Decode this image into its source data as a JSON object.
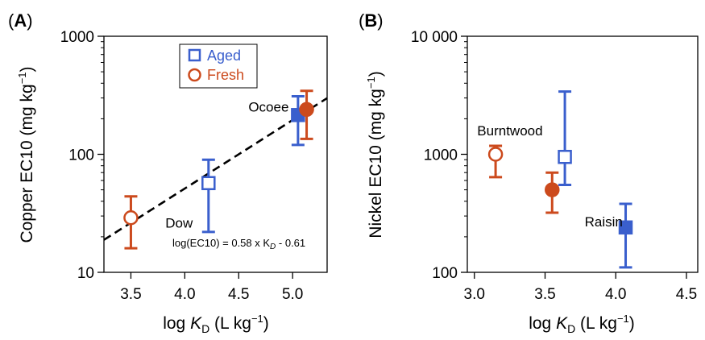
{
  "chart_data": [
    {
      "panel": "(A)",
      "panel_letter": "A",
      "type": "scatter",
      "ylabel": "Copper EC10 (mg kg⁻¹)",
      "xlabel": "log K_D (L kg⁻¹)",
      "x_scale": "linear",
      "y_scale": "log",
      "xlim": [
        3.25,
        5.32
      ],
      "ylim": [
        10,
        1000
      ],
      "x_ticks": [
        3.5,
        4.0,
        4.5,
        5.0
      ],
      "x_tick_labels": [
        "3.5",
        "4.0",
        "4.5",
        "5.0"
      ],
      "y_ticks": [
        10,
        100,
        1000
      ],
      "y_tick_labels": [
        "10",
        "100",
        "1000"
      ],
      "grid": false,
      "legend": {
        "placement": "top-center",
        "entries": [
          {
            "label": "Aged",
            "marker": "open-square",
            "color": "#3a5fcd"
          },
          {
            "label": "Fresh",
            "marker": "open-circle",
            "color": "#cc4a1d"
          }
        ]
      },
      "series": [
        {
          "name": "Aged",
          "color": "#3a5fcd",
          "points": [
            {
              "x": 4.22,
              "y": 57,
              "y_low": 22,
              "y_high": 90,
              "filled": false
            },
            {
              "x": 5.05,
              "y": 215,
              "y_low": 120,
              "y_high": 310,
              "filled": true
            }
          ]
        },
        {
          "name": "Fresh",
          "color": "#cc4a1d",
          "points": [
            {
              "x": 3.5,
              "y": 29,
              "y_low": 16,
              "y_high": 44,
              "filled": false
            },
            {
              "x": 5.13,
              "y": 240,
              "y_low": 135,
              "y_high": 345,
              "filled": true
            }
          ]
        }
      ],
      "fit_line": {
        "slope": 0.58,
        "intercept": -0.61,
        "x_range": [
          3.25,
          5.32
        ],
        "style": "dashed"
      },
      "annotations": [
        {
          "text": "Dow",
          "x": 3.82,
          "y": 24
        },
        {
          "text": "Ocoee",
          "x": 4.59,
          "y": 230
        }
      ],
      "equation_text": "log(EC10) = 0.58 x K",
      "equation_sub": "D",
      "equation_tail": " - 0.61"
    },
    {
      "panel": "(B)",
      "panel_letter": "B",
      "type": "scatter",
      "ylabel": "Nickel EC10 (mg kg⁻¹)",
      "xlabel": "log K_D (L kg⁻¹)",
      "x_scale": "linear",
      "y_scale": "log",
      "xlim": [
        2.95,
        4.58
      ],
      "ylim": [
        100,
        10000
      ],
      "x_ticks": [
        3.0,
        3.5,
        4.0,
        4.5
      ],
      "x_tick_labels": [
        "3.0",
        "3.5",
        "4.0",
        "4.5"
      ],
      "y_ticks": [
        100,
        1000,
        10000
      ],
      "y_tick_labels": [
        "100",
        "1000",
        "10 000"
      ],
      "grid": false,
      "series": [
        {
          "name": "Aged",
          "color": "#3a5fcd",
          "points": [
            {
              "x": 3.64,
              "y": 950,
              "y_low": 550,
              "y_high": 3400,
              "filled": false
            },
            {
              "x": 4.07,
              "y": 240,
              "y_low": 110,
              "y_high": 380,
              "filled": true
            }
          ]
        },
        {
          "name": "Fresh",
          "color": "#cc4a1d",
          "points": [
            {
              "x": 3.15,
              "y": 1000,
              "y_low": 640,
              "y_high": 1180,
              "filled": false
            },
            {
              "x": 3.55,
              "y": 500,
              "y_low": 320,
              "y_high": 700,
              "filled": true
            }
          ]
        }
      ],
      "annotations": [
        {
          "text": "Burntwood",
          "x": 3.02,
          "y": 1450
        },
        {
          "text": "Raisin",
          "x": 3.78,
          "y": 245
        }
      ]
    }
  ],
  "xlabel_prefix": "log ",
  "xlabel_K": "K",
  "xlabel_sub": "D",
  "xlabel_units": " (L kg",
  "xlabel_exp": "−1",
  "xlabel_close": ")",
  "ylabel_units_open": " EC10 (mg kg",
  "ylabel_exp": "−1",
  "ylabel_close": ")",
  "panelA_metal": "Copper",
  "panelB_metal": "Nickel"
}
